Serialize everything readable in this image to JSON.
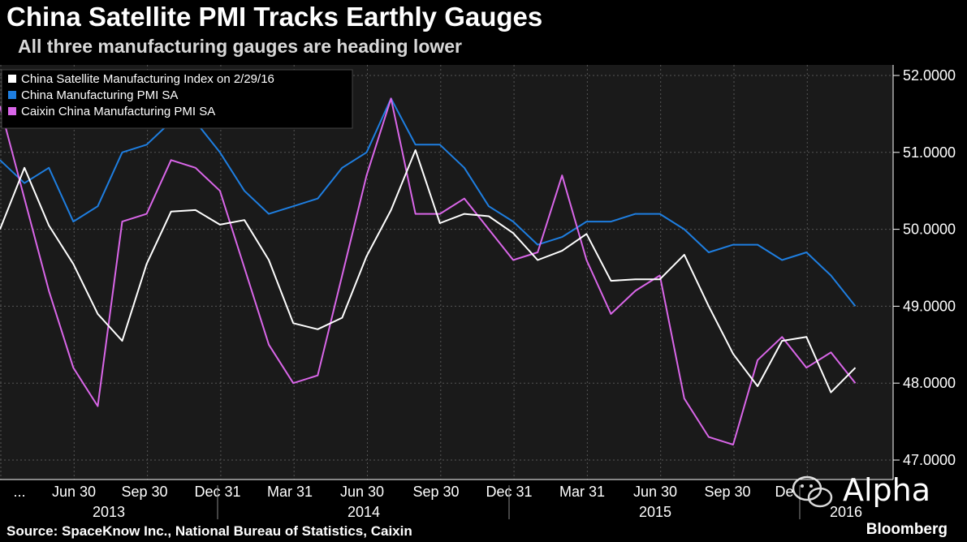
{
  "chart_data": {
    "type": "line",
    "title": "China Satellite PMI Tracks Earthly Gauges",
    "subtitle": "All three manufacturing gauges are heading lower",
    "ylim": [
      46.9,
      52.1
    ],
    "y_ticks": [
      "52.0000",
      "51.0000",
      "50.0000",
      "49.0000",
      "48.0000",
      "47.0000"
    ],
    "y_tick_values": [
      52,
      51,
      50,
      49,
      48,
      47
    ],
    "x_month_labels": [
      "...",
      "Jun 30",
      "Sep 30",
      "Dec 31",
      "Mar 31",
      "Jun 30",
      "Sep 30",
      "Dec 31",
      "Mar 31",
      "Jun 30",
      "Sep 30",
      "De"
    ],
    "x_year_labels": [
      "2013",
      "2014",
      "2015",
      "2016"
    ],
    "grid": true,
    "legend_position": "top-left",
    "series": [
      {
        "name": "China Satellite Manufacturing Index  on 2/29/16",
        "color": "#ffffff",
        "values": [
          50.0,
          50.8,
          50.05,
          49.55,
          48.9,
          48.55,
          49.55,
          50.23,
          50.25,
          50.06,
          50.12,
          49.6,
          48.78,
          48.7,
          48.85,
          49.65,
          50.25,
          51.03,
          50.08,
          50.2,
          50.17,
          49.95,
          49.6,
          49.72,
          49.94,
          49.33,
          49.35,
          49.35,
          49.67,
          49.0,
          48.38,
          47.96,
          48.55,
          48.6,
          47.88,
          48.2
        ]
      },
      {
        "name": "China Manufacturing PMI SA",
        "color": "#1e7ee0",
        "values": [
          50.9,
          50.6,
          50.8,
          50.1,
          50.3,
          51.0,
          51.1,
          51.4,
          51.4,
          51.0,
          50.5,
          50.2,
          50.3,
          50.4,
          50.8,
          51.0,
          51.7,
          51.1,
          51.1,
          50.8,
          50.3,
          50.1,
          49.8,
          49.9,
          50.1,
          50.1,
          50.2,
          50.2,
          50.0,
          49.7,
          49.8,
          49.8,
          49.6,
          49.7,
          49.4,
          49.0
        ]
      },
      {
        "name": "Caixin China Manufacturing PMI SA",
        "color": "#d966e8",
        "values": [
          51.6,
          50.4,
          49.2,
          48.2,
          47.7,
          50.1,
          50.2,
          50.9,
          50.8,
          50.5,
          49.5,
          48.5,
          48.0,
          48.1,
          49.4,
          50.7,
          51.7,
          50.2,
          50.2,
          50.4,
          50.0,
          49.6,
          49.7,
          50.7,
          49.6,
          48.9,
          49.2,
          49.4,
          47.8,
          47.3,
          47.2,
          48.3,
          48.6,
          48.2,
          48.4,
          48.0
        ]
      }
    ]
  },
  "source": "Source: SpaceKnow Inc., National Bureau of Statistics, Caixin",
  "brand": "Bloomberg",
  "watermark": "Alpha"
}
